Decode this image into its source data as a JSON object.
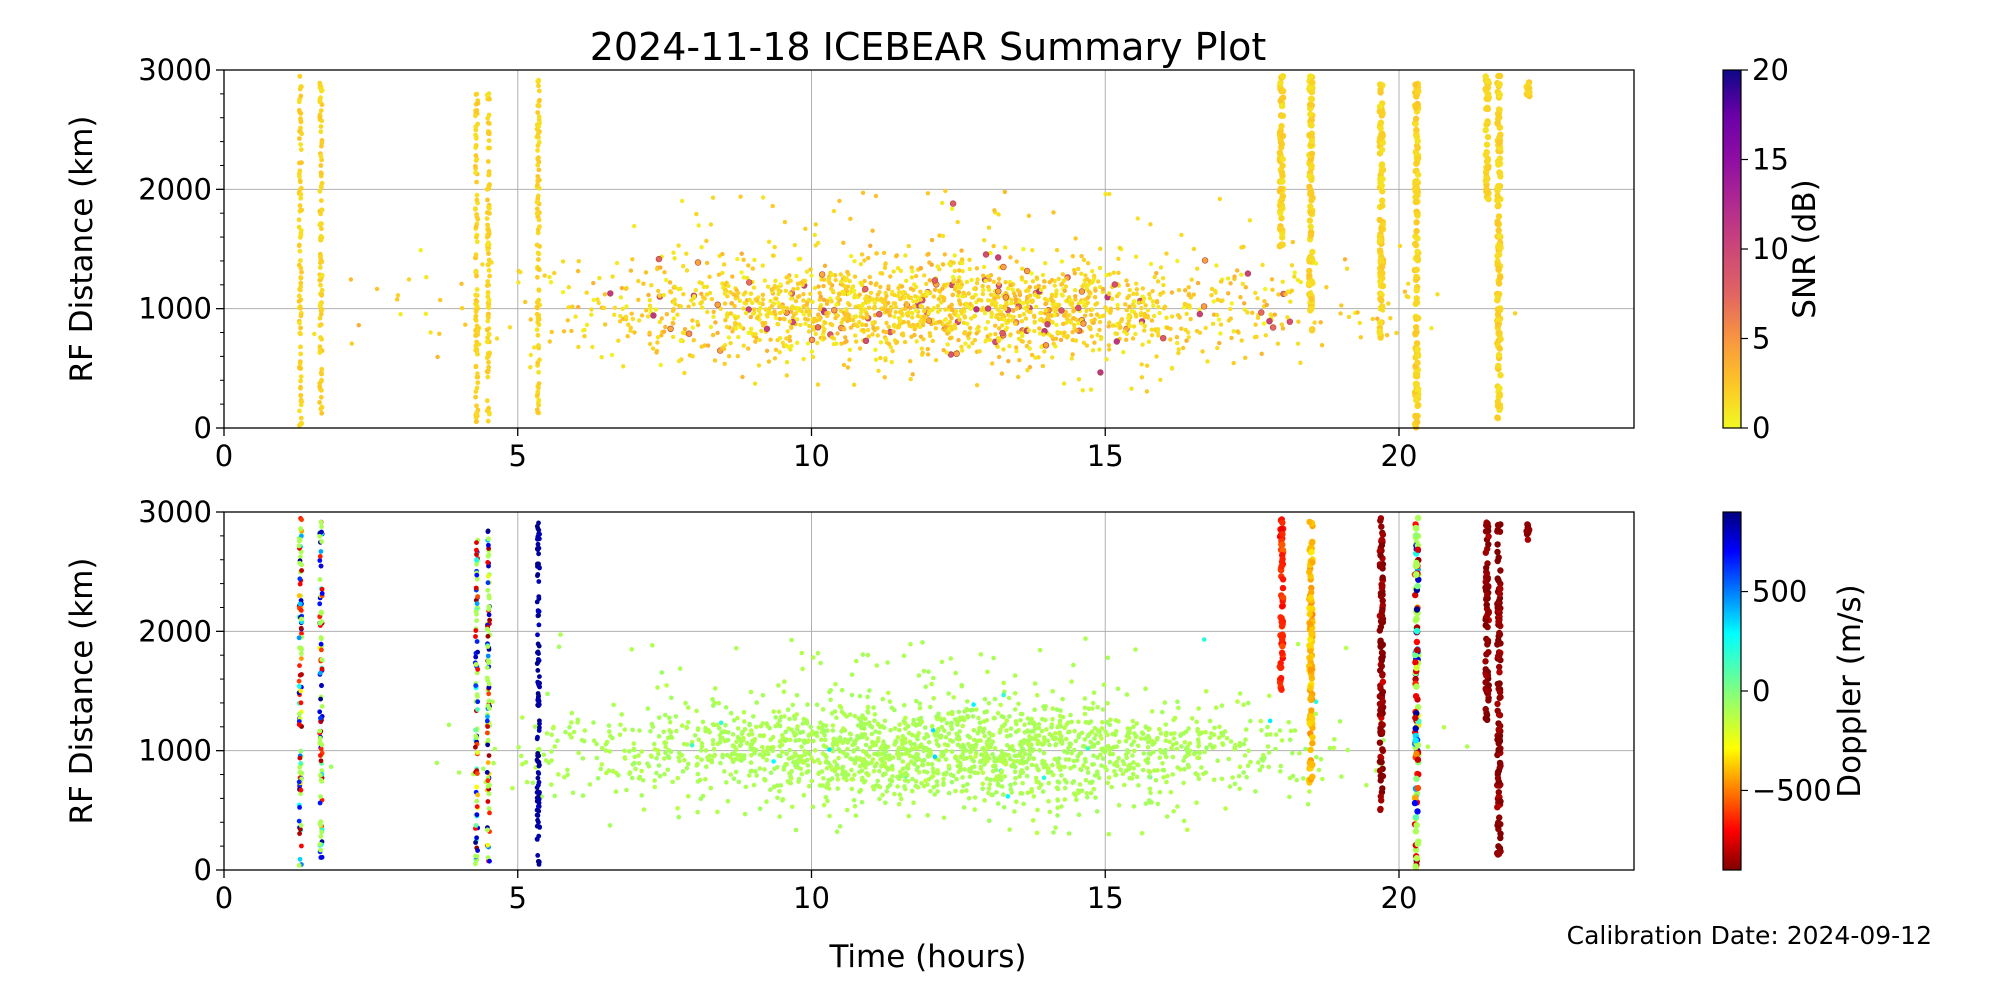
{
  "figure": {
    "title": "2024-11-18 ICEBEAR Summary Plot",
    "calibration_text": "Calibration Date: 2024-09-12"
  },
  "chart_data": [
    {
      "type": "scatter",
      "panel": "top",
      "title": "2024-11-18 ICEBEAR Summary Plot",
      "xlabel": "",
      "ylabel": "RF Distance (km)",
      "xlim": [
        0,
        24
      ],
      "ylim": [
        0,
        3000
      ],
      "xticks": [
        0,
        5,
        10,
        15,
        20
      ],
      "yticks": [
        0,
        1000,
        2000,
        3000
      ],
      "grid": true,
      "color_by": "SNR",
      "colorbar": {
        "label": "SNR (dB)",
        "range": [
          0,
          20
        ],
        "ticks": [
          0,
          5,
          10,
          15,
          20
        ],
        "colormap": "plasma_r"
      },
      "scatter_cloud": {
        "x_range": [
          0,
          24
        ],
        "density_peak_hour": 12,
        "distance_core_range": [
          400,
          1800
        ],
        "snr_typical": [
          0,
          6
        ],
        "snr_max_observed": 12
      },
      "vertical_streaks": [
        {
          "x": 1.3,
          "y_range": [
            0,
            2950
          ],
          "snr": 1
        },
        {
          "x": 1.65,
          "y_range": [
            100,
            2950
          ],
          "snr": 1
        },
        {
          "x": 4.3,
          "y_range": [
            50,
            2800
          ],
          "snr": 1
        },
        {
          "x": 4.5,
          "y_range": [
            50,
            2850
          ],
          "snr": 1
        },
        {
          "x": 5.35,
          "y_range": [
            0,
            2950
          ],
          "snr": 1
        },
        {
          "x": 18.0,
          "y_range": [
            1500,
            2950
          ],
          "snr": 1
        },
        {
          "x": 18.5,
          "y_range": [
            800,
            2950
          ],
          "snr": 1
        },
        {
          "x": 19.7,
          "y_range": [
            700,
            2950
          ],
          "snr": 1
        },
        {
          "x": 20.3,
          "y_range": [
            0,
            2950
          ],
          "snr": 1
        },
        {
          "x": 21.5,
          "y_range": [
            1900,
            2950
          ],
          "snr": 1
        },
        {
          "x": 21.7,
          "y_range": [
            80,
            2950
          ],
          "snr": 1
        },
        {
          "x": 22.2,
          "y_range": [
            2750,
            2900
          ],
          "snr": 1
        }
      ]
    },
    {
      "type": "scatter",
      "panel": "bottom",
      "xlabel": "Time (hours)",
      "ylabel": "RF Distance (km)",
      "xlim": [
        0,
        24
      ],
      "ylim": [
        0,
        3000
      ],
      "xticks": [
        0,
        5,
        10,
        15,
        20
      ],
      "yticks": [
        0,
        1000,
        2000,
        3000
      ],
      "grid": true,
      "color_by": "Doppler",
      "colorbar": {
        "label": "Doppler (m/s)",
        "range": [
          -900,
          900
        ],
        "ticks": [
          -500,
          0,
          500
        ],
        "tick_labels": [
          "−500",
          "0",
          "500"
        ],
        "colormap": "jet_r"
      },
      "scatter_cloud": {
        "x_range": [
          0,
          24
        ],
        "density_peak_hour": 12,
        "distance_core_range": [
          400,
          1800
        ],
        "doppler_typical": -100
      },
      "vertical_streaks": [
        {
          "x": 1.3,
          "y_range": [
            0,
            2950
          ],
          "doppler": "mixed"
        },
        {
          "x": 1.65,
          "y_range": [
            100,
            2950
          ],
          "doppler": "mixed"
        },
        {
          "x": 4.3,
          "y_range": [
            50,
            2800
          ],
          "doppler": "mixed"
        },
        {
          "x": 4.5,
          "y_range": [
            50,
            2850
          ],
          "doppler": "mixed"
        },
        {
          "x": 5.35,
          "y_range": [
            0,
            2950
          ],
          "doppler": 850
        },
        {
          "x": 18.0,
          "y_range": [
            1500,
            2950
          ],
          "doppler": -650
        },
        {
          "x": 18.5,
          "y_range": [
            700,
            2950
          ],
          "doppler": -400
        },
        {
          "x": 19.7,
          "y_range": [
            500,
            2950
          ],
          "doppler": -880
        },
        {
          "x": 20.3,
          "y_range": [
            0,
            2950
          ],
          "doppler": "mixed"
        },
        {
          "x": 21.5,
          "y_range": [
            1200,
            2950
          ],
          "doppler": -880
        },
        {
          "x": 21.7,
          "y_range": [
            80,
            2950
          ],
          "doppler": -880
        },
        {
          "x": 22.2,
          "y_range": [
            2750,
            2900
          ],
          "doppler": -880
        }
      ]
    }
  ]
}
